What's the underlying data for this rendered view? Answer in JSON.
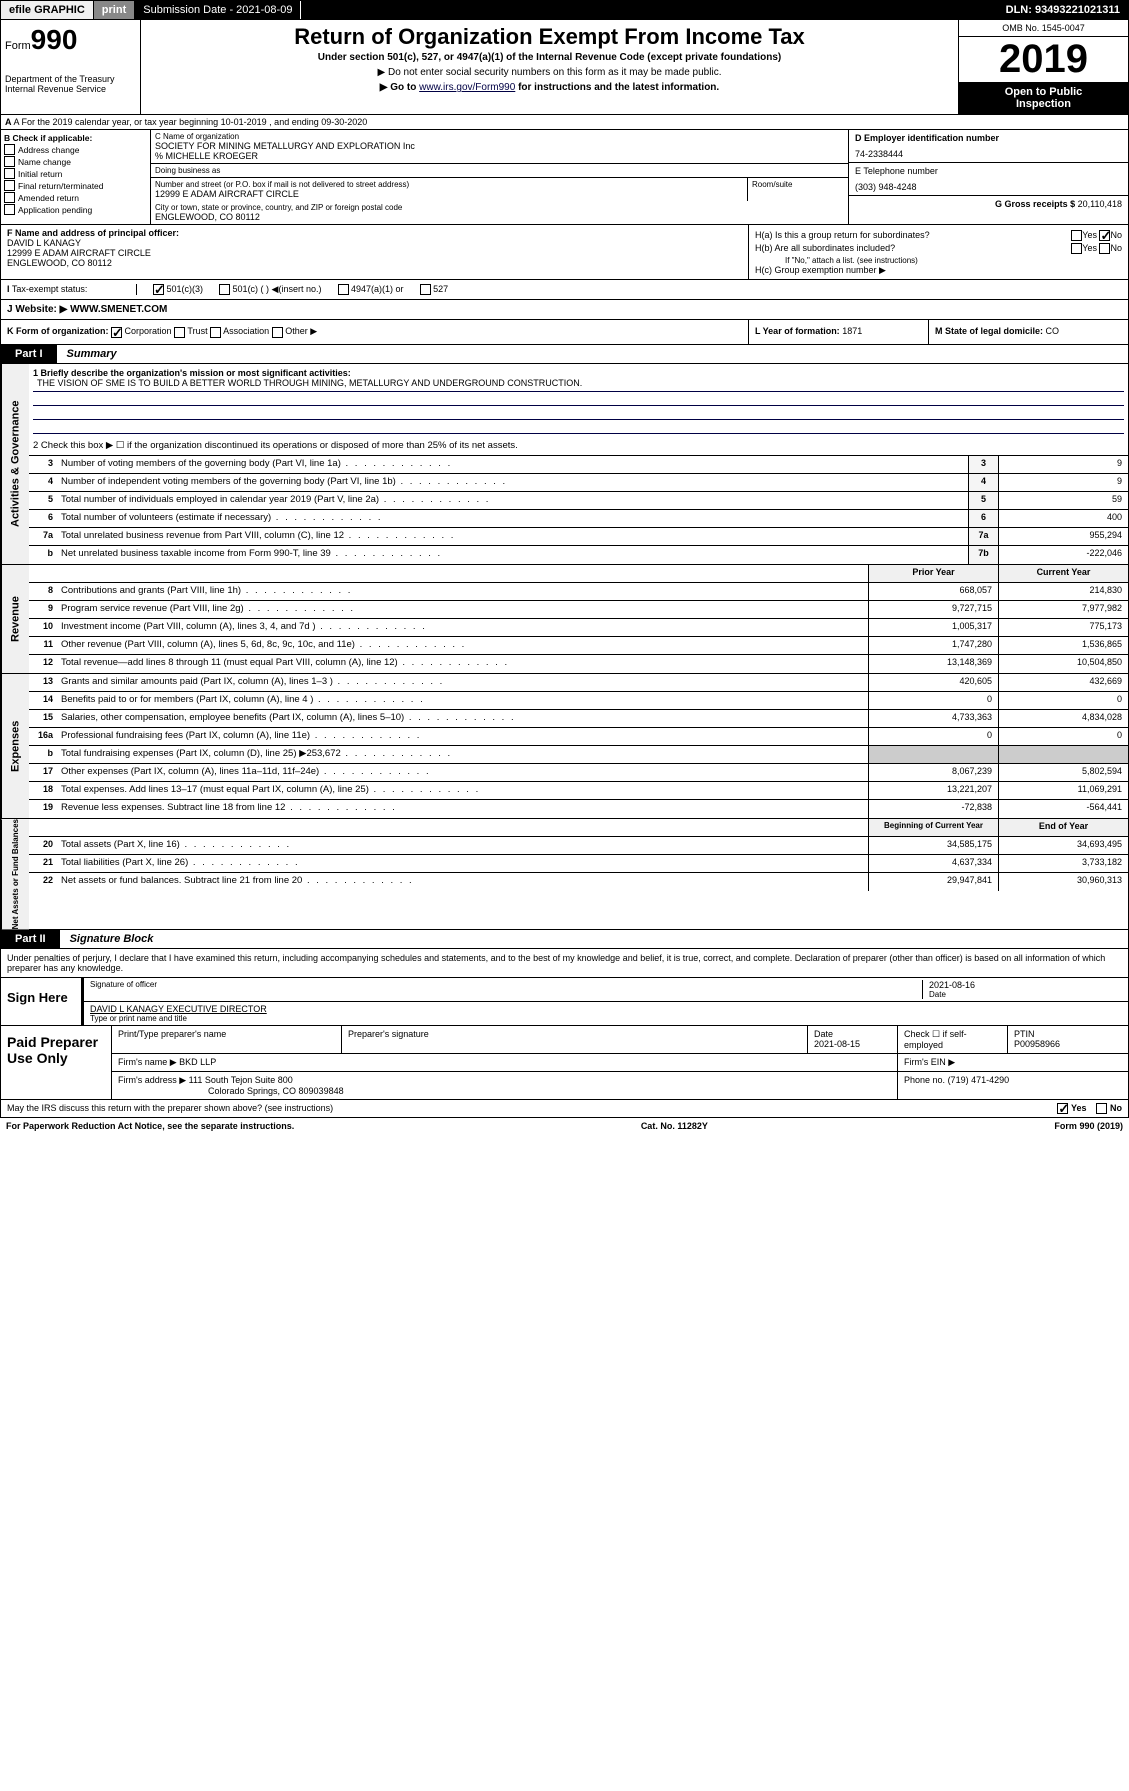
{
  "topbar": {
    "efile": "efile GRAPHIC",
    "print": "print",
    "submission": "Submission Date - 2021-08-09",
    "dln": "DLN: 93493221021311"
  },
  "header": {
    "form_prefix": "Form",
    "form_num": "990",
    "dept": "Department of the Treasury",
    "irs": "Internal Revenue Service",
    "title": "Return of Organization Exempt From Income Tax",
    "subtitle": "Under section 501(c), 527, or 4947(a)(1) of the Internal Revenue Code (except private foundations)",
    "instr1": "▶ Do not enter social security numbers on this form as it may be made public.",
    "instr2_pre": "▶ Go to ",
    "instr2_link": "www.irs.gov/Form990",
    "instr2_post": " for instructions and the latest information.",
    "omb": "OMB No. 1545-0047",
    "year": "2019",
    "open1": "Open to Public",
    "open2": "Inspection"
  },
  "row_a": {
    "text": "A For the 2019 calendar year, or tax year beginning 10-01-2019    , and ending 09-30-2020"
  },
  "box_b": {
    "label": "B Check if applicable:",
    "items": [
      "Address change",
      "Name change",
      "Initial return",
      "Final return/terminated",
      "Amended return",
      "Application pending"
    ]
  },
  "box_c": {
    "label": "C Name of organization",
    "name": "SOCIETY FOR MINING METALLURGY AND EXPLORATION Inc",
    "care_of": "% MICHELLE KROEGER",
    "dba_label": "Doing business as",
    "addr_label": "Number and street (or P.O. box if mail is not delivered to street address)",
    "room_label": "Room/suite",
    "addr": "12999 E ADAM AIRCRAFT CIRCLE",
    "city_label": "City or town, state or province, country, and ZIP or foreign postal code",
    "city": "ENGLEWOOD, CO  80112"
  },
  "box_d": {
    "label": "D Employer identification number",
    "value": "74-2338444"
  },
  "box_e": {
    "label": "E Telephone number",
    "value": "(303) 948-4248"
  },
  "box_g": {
    "label": "G Gross receipts $",
    "value": "20,110,418"
  },
  "box_f": {
    "label": "F Name and address of principal officer:",
    "name": "DAVID L KANAGY",
    "addr1": "12999 E ADAM AIRCRAFT CIRCLE",
    "addr2": "ENGLEWOOD, CO  80112"
  },
  "box_h": {
    "a": "H(a)  Is this a group return for subordinates?",
    "b": "H(b)  Are all subordinates included?",
    "note": "If \"No,\" attach a list. (see instructions)",
    "c": "H(c)  Group exemption number ▶"
  },
  "tax_status": {
    "label": "Tax-exempt status:",
    "o1": "501(c)(3)",
    "o2": "501(c) (  ) ◀(insert no.)",
    "o3": "4947(a)(1) or",
    "o4": "527"
  },
  "website": {
    "label": "J  Website: ▶",
    "value": "WWW.SMENET.COM"
  },
  "row_k": {
    "label": "K Form of organization:",
    "opts": [
      "Corporation",
      "Trust",
      "Association",
      "Other ▶"
    ]
  },
  "row_l": {
    "label": "L Year of formation:",
    "value": "1871"
  },
  "row_m": {
    "label": "M State of legal domicile:",
    "value": "CO"
  },
  "part1": {
    "tab": "Part I",
    "title": "Summary"
  },
  "summary": {
    "l1_label": "1  Briefly describe the organization's mission or most significant activities:",
    "l1_text": "THE VISION OF SME IS TO BUILD A BETTER WORLD THROUGH MINING, METALLURGY AND UNDERGROUND CONSTRUCTION.",
    "l2": "2   Check this box ▶ ☐  if the organization discontinued its operations or disposed of more than 25% of its net assets.",
    "lines_gov": [
      {
        "n": "3",
        "d": "Number of voting members of the governing body (Part VI, line 1a)",
        "b": "3",
        "v": "9"
      },
      {
        "n": "4",
        "d": "Number of independent voting members of the governing body (Part VI, line 1b)",
        "b": "4",
        "v": "9"
      },
      {
        "n": "5",
        "d": "Total number of individuals employed in calendar year 2019 (Part V, line 2a)",
        "b": "5",
        "v": "59"
      },
      {
        "n": "6",
        "d": "Total number of volunteers (estimate if necessary)",
        "b": "6",
        "v": "400"
      },
      {
        "n": "7a",
        "d": "Total unrelated business revenue from Part VIII, column (C), line 12",
        "b": "7a",
        "v": "955,294"
      },
      {
        "n": "b",
        "d": "Net unrelated business taxable income from Form 990-T, line 39",
        "b": "7b",
        "v": "-222,046"
      }
    ],
    "hdr_prior": "Prior Year",
    "hdr_curr": "Current Year",
    "lines_rev": [
      {
        "n": "8",
        "d": "Contributions and grants (Part VIII, line 1h)",
        "p": "668,057",
        "c": "214,830"
      },
      {
        "n": "9",
        "d": "Program service revenue (Part VIII, line 2g)",
        "p": "9,727,715",
        "c": "7,977,982"
      },
      {
        "n": "10",
        "d": "Investment income (Part VIII, column (A), lines 3, 4, and 7d )",
        "p": "1,005,317",
        "c": "775,173"
      },
      {
        "n": "11",
        "d": "Other revenue (Part VIII, column (A), lines 5, 6d, 8c, 9c, 10c, and 11e)",
        "p": "1,747,280",
        "c": "1,536,865"
      },
      {
        "n": "12",
        "d": "Total revenue—add lines 8 through 11 (must equal Part VIII, column (A), line 12)",
        "p": "13,148,369",
        "c": "10,504,850"
      }
    ],
    "lines_exp": [
      {
        "n": "13",
        "d": "Grants and similar amounts paid (Part IX, column (A), lines 1–3 )",
        "p": "420,605",
        "c": "432,669"
      },
      {
        "n": "14",
        "d": "Benefits paid to or for members (Part IX, column (A), line 4 )",
        "p": "0",
        "c": "0"
      },
      {
        "n": "15",
        "d": "Salaries, other compensation, employee benefits (Part IX, column (A), lines 5–10)",
        "p": "4,733,363",
        "c": "4,834,028"
      },
      {
        "n": "16a",
        "d": "Professional fundraising fees (Part IX, column (A), line 11e)",
        "p": "0",
        "c": "0"
      },
      {
        "n": "b",
        "d": "Total fundraising expenses (Part IX, column (D), line 25) ▶253,672",
        "p": "",
        "c": ""
      },
      {
        "n": "17",
        "d": "Other expenses (Part IX, column (A), lines 11a–11d, 11f–24e)",
        "p": "8,067,239",
        "c": "5,802,594"
      },
      {
        "n": "18",
        "d": "Total expenses. Add lines 13–17 (must equal Part IX, column (A), line 25)",
        "p": "13,221,207",
        "c": "11,069,291"
      },
      {
        "n": "19",
        "d": "Revenue less expenses. Subtract line 18 from line 12",
        "p": "-72,838",
        "c": "-564,441"
      }
    ],
    "hdr_beg": "Beginning of Current Year",
    "hdr_end": "End of Year",
    "lines_net": [
      {
        "n": "20",
        "d": "Total assets (Part X, line 16)",
        "p": "34,585,175",
        "c": "34,693,495"
      },
      {
        "n": "21",
        "d": "Total liabilities (Part X, line 26)",
        "p": "4,637,334",
        "c": "3,733,182"
      },
      {
        "n": "22",
        "d": "Net assets or fund balances. Subtract line 21 from line 20",
        "p": "29,947,841",
        "c": "30,960,313"
      }
    ]
  },
  "side_labels": {
    "gov": "Activities & Governance",
    "rev": "Revenue",
    "exp": "Expenses",
    "net": "Net Assets or Fund Balances"
  },
  "part2": {
    "tab": "Part II",
    "title": "Signature Block"
  },
  "sig": {
    "perjury": "Under penalties of perjury, I declare that I have examined this return, including accompanying schedules and statements, and to the best of my knowledge and belief, it is true, correct, and complete. Declaration of preparer (other than officer) is based on all information of which preparer has any knowledge.",
    "sign_here": "Sign Here",
    "sig_officer": "Signature of officer",
    "date": "2021-08-16",
    "date_lbl": "Date",
    "officer_name": "DAVID L KANAGY  EXECUTIVE DIRECTOR",
    "type_name": "Type or print name and title"
  },
  "paid": {
    "label": "Paid Preparer Use Only",
    "h1": "Print/Type preparer's name",
    "h2": "Preparer's signature",
    "h3": "Date",
    "h3v": "2021-08-15",
    "h4": "Check ☐ if self-employed",
    "h5": "PTIN",
    "h5v": "P00958966",
    "firm_name_lbl": "Firm's name    ▶",
    "firm_name": "BKD LLP",
    "firm_ein_lbl": "Firm's EIN ▶",
    "firm_addr_lbl": "Firm's address ▶",
    "firm_addr": "111 South Tejon Suite 800",
    "firm_city": "Colorado Springs, CO  809039848",
    "phone_lbl": "Phone no.",
    "phone": "(719) 471-4290"
  },
  "footer": {
    "discuss": "May the IRS discuss this return with the preparer shown above? (see instructions)",
    "yes": "Yes",
    "no": "No",
    "paperwork": "For Paperwork Reduction Act Notice, see the separate instructions.",
    "cat": "Cat. No. 11282Y",
    "form": "Form 990 (2019)"
  }
}
